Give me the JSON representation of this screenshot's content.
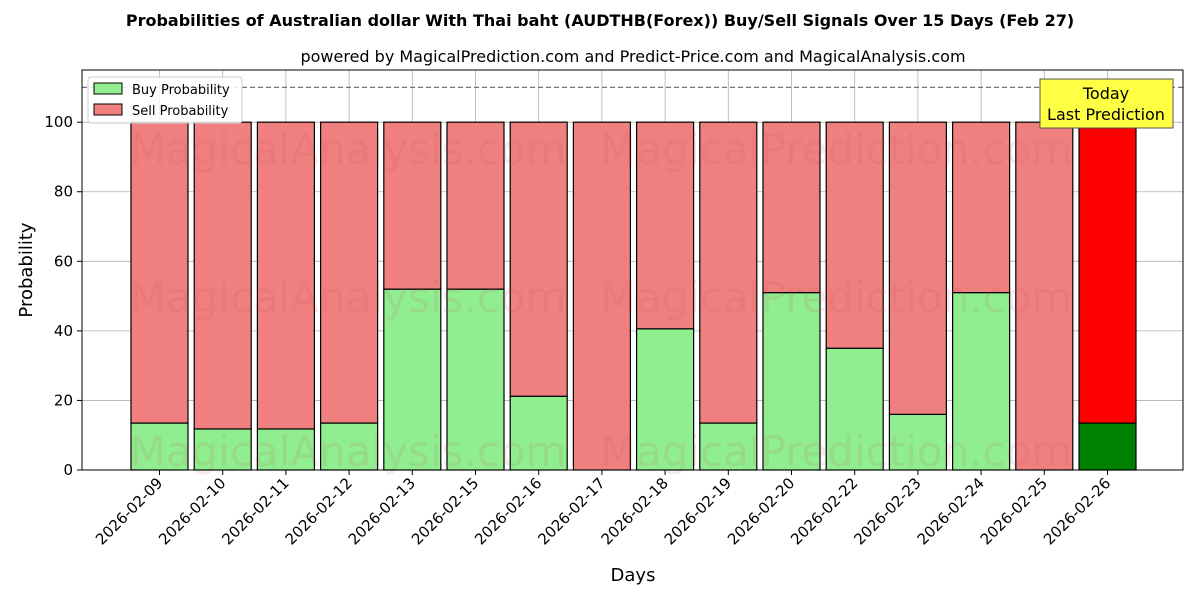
{
  "chart_data": {
    "type": "bar",
    "title": "Probabilities of Australian dollar With Thai baht (AUDTHB(Forex)) Buy/Sell Signals Over 15 Days (Feb 27)",
    "subtitle": "powered by MagicalPrediction.com and Predict-Price.com and MagicalAnalysis.com",
    "xlabel": "Days",
    "ylabel": "Probability",
    "ylim": [
      0,
      115
    ],
    "yticks": [
      0,
      20,
      40,
      60,
      80,
      100
    ],
    "reference_line": 110,
    "categories": [
      "2026-02-09",
      "2026-02-10",
      "2026-02-11",
      "2026-02-12",
      "2026-02-13",
      "2026-02-15",
      "2026-02-16",
      "2026-02-17",
      "2026-02-18",
      "2026-02-19",
      "2026-02-20",
      "2026-02-22",
      "2026-02-23",
      "2026-02-24",
      "2026-02-25",
      "2026-02-26"
    ],
    "series": [
      {
        "name": "Buy Probability",
        "values": [
          13.5,
          11.8,
          11.8,
          13.5,
          52,
          52,
          21.2,
          0,
          40.6,
          13.5,
          51,
          35,
          16,
          51,
          0,
          13.5
        ],
        "color": "#90ee90",
        "today_color": "#008000"
      },
      {
        "name": "Sell Probability",
        "values": [
          86.5,
          88.2,
          88.2,
          86.5,
          48,
          48,
          78.8,
          100,
          59.4,
          86.5,
          49,
          65,
          84,
          49,
          100,
          86.5
        ],
        "color": "#f08080",
        "today_color": "#ff0000"
      }
    ],
    "stacked": true,
    "grid": true,
    "legend": "top-left",
    "annotation": {
      "line1": "Today",
      "line2": "Last Prediction",
      "color": "#ffff44"
    },
    "watermarks": [
      "MagicalAnalysis.com",
      "MagicalPrediction.com"
    ]
  }
}
